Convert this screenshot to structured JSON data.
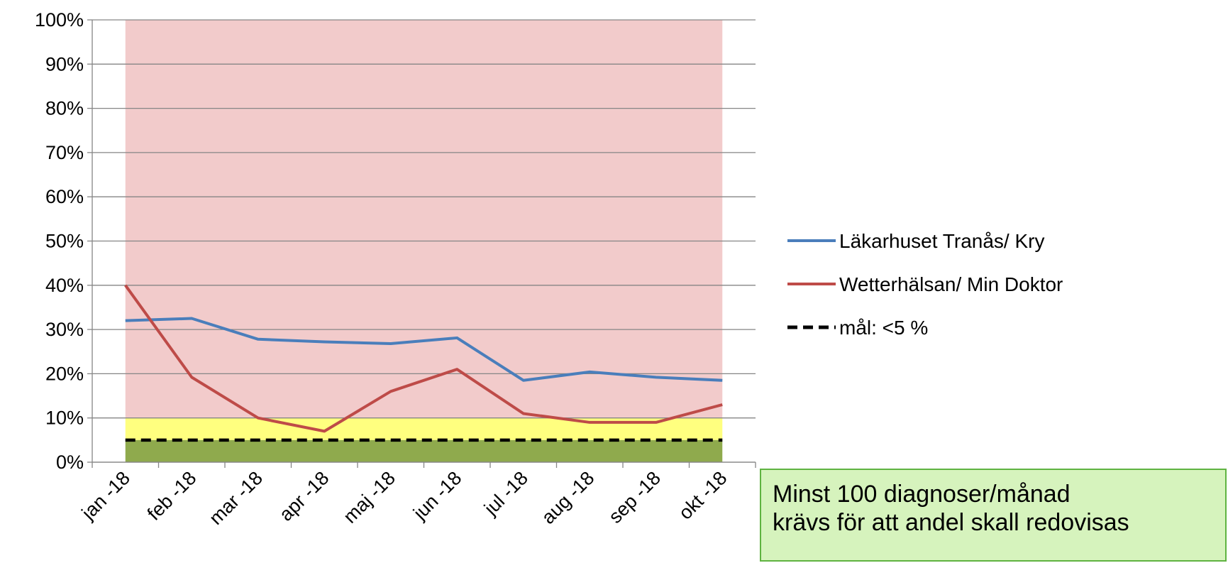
{
  "chart_data": {
    "type": "line",
    "categories": [
      "jan -18",
      "feb -18",
      "mar -18",
      "apr -18",
      "maj -18",
      "jun -18",
      "jul -18",
      "aug -18",
      "sep -18",
      "okt -18"
    ],
    "series": [
      {
        "name": "Läkarhuset Tranås/ Kry",
        "color": "#4a7ebb",
        "values": [
          32,
          32.5,
          27.8,
          27.2,
          26.8,
          28.1,
          18.5,
          20.4,
          19.2,
          18.5
        ]
      },
      {
        "name": "Wetterhälsan/ Min Doktor",
        "color": "#be4b48",
        "values": [
          40,
          19.2,
          10,
          7,
          16,
          21,
          11,
          9,
          9,
          13
        ]
      },
      {
        "name": "mål: <5 %",
        "color": "#000000",
        "dashed": true,
        "values": [
          5,
          5,
          5,
          5,
          5,
          5,
          5,
          5,
          5,
          5
        ]
      }
    ],
    "bands": [
      {
        "from": 10,
        "to": 100,
        "color": "#f2cbcb"
      },
      {
        "from": 5,
        "to": 10,
        "color": "#ffff7f"
      },
      {
        "from": 0,
        "to": 5,
        "color": "#8faa4d"
      }
    ],
    "ylim": [
      0,
      100
    ],
    "yticks": [
      {
        "value": 0,
        "label": "0%"
      },
      {
        "value": 10,
        "label": "10%"
      },
      {
        "value": 20,
        "label": "20%"
      },
      {
        "value": 30,
        "label": "30%"
      },
      {
        "value": 40,
        "label": "40%"
      },
      {
        "value": 50,
        "label": "50%"
      },
      {
        "value": 60,
        "label": "60%"
      },
      {
        "value": 70,
        "label": "70%"
      },
      {
        "value": 80,
        "label": "80%"
      },
      {
        "value": 90,
        "label": "90%"
      },
      {
        "value": 100,
        "label": "100%"
      }
    ],
    "grid": true,
    "legend": "right",
    "annotation": [
      "Minst 100 diagnoser/månad",
      "krävs för att andel skall redovisas"
    ]
  }
}
